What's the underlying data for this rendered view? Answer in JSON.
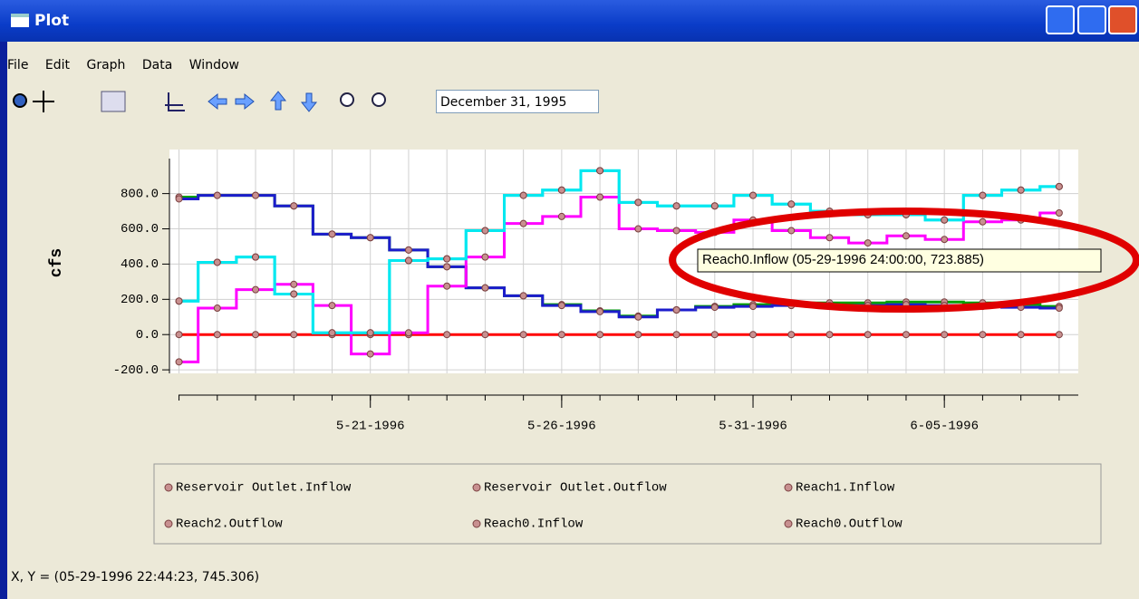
{
  "window": {
    "title": "Plot",
    "menu": [
      "File",
      "Edit",
      "Graph",
      "Data",
      "Window"
    ],
    "toolbar_date": "December 31, 1995"
  },
  "chart_data": {
    "type": "line",
    "step": "mid",
    "ylabel": "cfs",
    "x": [
      "05-16-1996",
      "05-17-1996",
      "05-18-1996",
      "05-19-1996",
      "05-20-1996",
      "05-21-1996",
      "05-22-1996",
      "05-23-1996",
      "05-24-1996",
      "05-25-1996",
      "05-26-1996",
      "05-27-1996",
      "05-28-1996",
      "05-29-1996",
      "05-30-1996",
      "05-31-1996",
      "06-01-1996",
      "06-02-1996",
      "06-03-1996",
      "06-04-1996",
      "06-05-1996",
      "06-06-1996",
      "06-07-1996",
      "06-08-1996"
    ],
    "xlim": [
      "05-15-1996 18:00",
      "06-08-1996 12:00"
    ],
    "xticks": [
      {
        "value": "05-21-1996",
        "label": "5-21-1996"
      },
      {
        "value": "05-26-1996",
        "label": "5-26-1996"
      },
      {
        "value": "05-31-1996",
        "label": "5-31-1996"
      },
      {
        "value": "06-05-1996",
        "label": "6-05-1996"
      }
    ],
    "ylim": [
      -220,
      1050
    ],
    "yticks": [
      {
        "value": -200,
        "label": "-200.0"
      },
      {
        "value": 0,
        "label": "0.0"
      },
      {
        "value": 200,
        "label": "200.0"
      },
      {
        "value": 400,
        "label": "400.0"
      },
      {
        "value": 600,
        "label": "600.0"
      },
      {
        "value": 800,
        "label": "800.0"
      }
    ],
    "grid": true,
    "series": [
      {
        "name": "Reservoir Outlet.Inflow",
        "color": "#00a000",
        "values": [
          780,
          790,
          790,
          730,
          570,
          550,
          480,
          385,
          265,
          220,
          170,
          135,
          105,
          140,
          160,
          170,
          175,
          180,
          180,
          185,
          185,
          180,
          170,
          160
        ]
      },
      {
        "name": "Reservoir Outlet.Outflow",
        "color": "#1c1ccc",
        "values": [
          770,
          790,
          790,
          730,
          570,
          550,
          480,
          385,
          265,
          220,
          165,
          130,
          100,
          140,
          155,
          160,
          165,
          165,
          165,
          170,
          165,
          160,
          155,
          150
        ]
      },
      {
        "name": "Reach1.Inflow",
        "color": "#ff0000",
        "values": [
          0,
          0,
          0,
          0,
          0,
          0,
          0,
          0,
          0,
          0,
          0,
          0,
          0,
          0,
          0,
          0,
          0,
          0,
          0,
          0,
          0,
          0,
          0,
          0
        ]
      },
      {
        "name": "Reach2.Outflow",
        "color": "#ff00ff",
        "values": [
          -155,
          150,
          255,
          285,
          165,
          -110,
          10,
          275,
          440,
          630,
          670,
          780,
          600,
          590,
          580,
          650,
          590,
          550,
          520,
          560,
          540,
          640,
          650,
          690
        ]
      },
      {
        "name": "Reach0.Inflow",
        "color": "#00e8f0",
        "values": [
          190,
          410,
          440,
          230,
          10,
          10,
          420,
          430,
          590,
          790,
          820,
          930,
          750,
          730,
          730,
          790,
          740,
          700,
          680,
          680,
          650,
          790,
          820,
          840
        ]
      },
      {
        "name": "Reach0.Outflow",
        "color": "#00e8f0",
        "values": [
          190,
          410,
          440,
          230,
          10,
          10,
          420,
          430,
          590,
          790,
          820,
          930,
          750,
          730,
          730,
          790,
          740,
          700,
          680,
          680,
          650,
          790,
          820,
          840
        ]
      }
    ],
    "tooltip": "Reach0.Inflow (05-29-1996 24:00:00, 723.885)"
  },
  "status": "X, Y = (05-29-1996 22:44:23, 745.306)"
}
